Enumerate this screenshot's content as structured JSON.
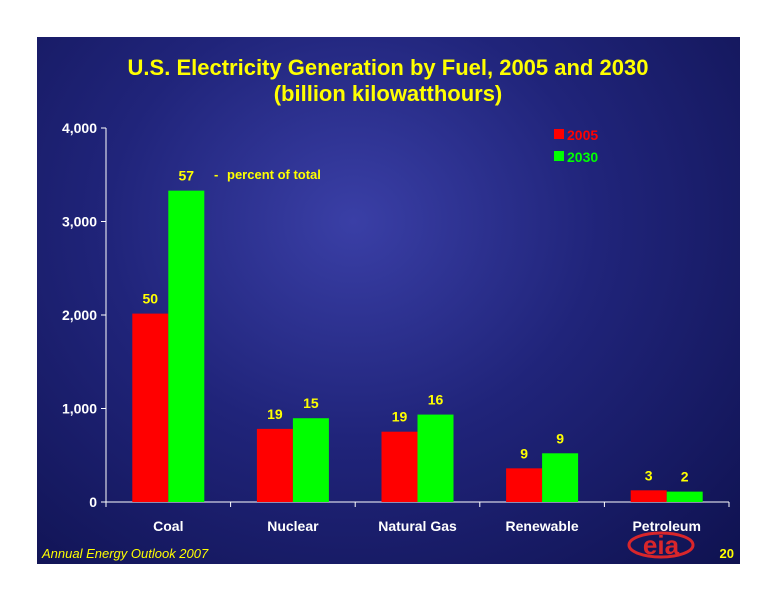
{
  "slide": {
    "footer": "Annual Energy Outlook 2007",
    "page_number": "20",
    "logo_text": "eia"
  },
  "colors": {
    "series_2005": "#ff0000",
    "series_2030": "#00ff00",
    "title": "#ffff00",
    "axis": "#ffffff"
  },
  "chart_data": {
    "type": "bar",
    "title": "U.S. Electricity Generation by Fuel, 2005 and 2030",
    "subtitle": "(billion kilowatthours)",
    "categories": [
      "Coal",
      "Nuclear",
      "Natural Gas",
      "Renewable",
      "Petroleum"
    ],
    "series": [
      {
        "name": "2005",
        "values": [
          2015,
          782,
          752,
          360,
          125
        ],
        "labels": [
          "50",
          "19",
          "19",
          "9",
          "3"
        ]
      },
      {
        "name": "2030",
        "values": [
          3330,
          896,
          935,
          521,
          111
        ],
        "labels": [
          "57",
          "15",
          "16",
          "9",
          "2"
        ]
      }
    ],
    "label_note": "percent of total",
    "label_note_marker": "-",
    "ylim": [
      0,
      4000
    ],
    "yticks": [
      0,
      1000,
      2000,
      3000,
      4000
    ],
    "ytick_labels": [
      "0",
      "1,000",
      "2,000",
      "3,000",
      "4,000"
    ],
    "legend_position": "top-right",
    "grid": false
  }
}
